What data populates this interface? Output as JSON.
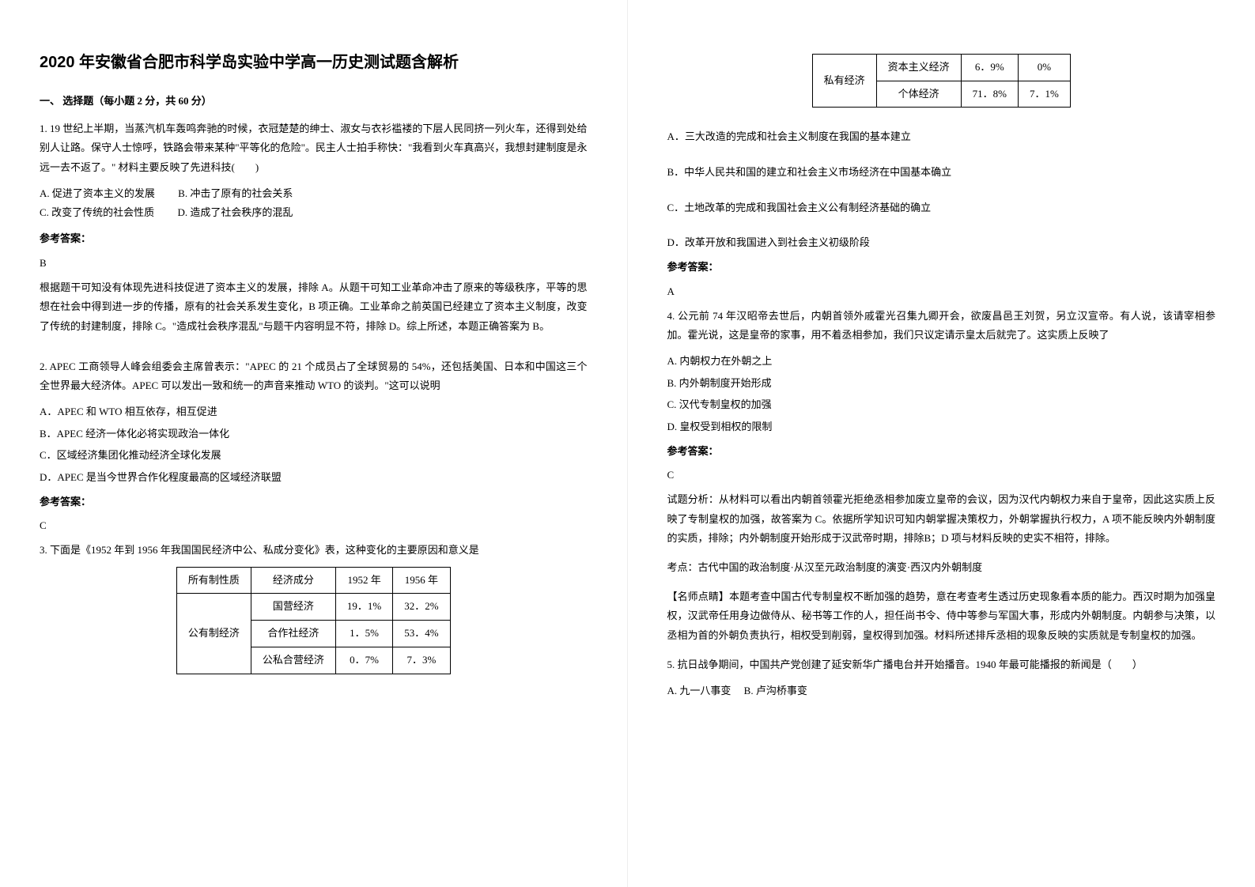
{
  "title": "2020 年安徽省合肥市科学岛实验中学高一历史测试题含解析",
  "section1_heading": "一、 选择题（每小题 2 分，共 60 分）",
  "q1": {
    "stem": "1. 19 世纪上半期，当蒸汽机车轰鸣奔驰的时候，衣冠楚楚的绅士、淑女与衣衫褴褛的下层人民同挤一列火车，还得到处给别人让路。保守人士惊呼，铁路会带来某种\"平等化的危险\"。民主人士拍手称快：\"我看到火车真高兴，我想封建制度是永远一去不返了。\" 材料主要反映了先进科技(　　)",
    "optA": "A. 促进了资本主义的发展",
    "optB": "B. 冲击了原有的社会关系",
    "optC": "C. 改变了传统的社会性质",
    "optD": "D. 造成了社会秩序的混乱",
    "answer": "B",
    "analysis": "根据题干可知没有体现先进科技促进了资本主义的发展，排除 A。从题干可知工业革命冲击了原来的等级秩序，平等的思想在社会中得到进一步的传播，原有的社会关系发生变化，B 项正确。工业革命之前英国已经建立了资本主义制度，改变了传统的封建制度，排除 C。\"造成社会秩序混乱\"与题干内容明显不符，排除 D。综上所述，本题正确答案为 B。"
  },
  "q2": {
    "stem": "2. APEC 工商领导人峰会组委会主席曾表示：\"APEC 的 21 个成员占了全球贸易的 54%，还包括美国、日本和中国这三个全世界最大经济体。APEC 可以发出一致和统一的声音来推动 WTO 的谈判。\"这可以说明",
    "optA": "A．APEC 和 WTO 相互依存，相互促进",
    "optB": "B．APEC 经济一体化必将实现政治一体化",
    "optC": "C．区域经济集团化推动经济全球化发展",
    "optD": "D．APEC 是当今世界合作化程度最高的区域经济联盟",
    "answer": "C"
  },
  "q3": {
    "stem": "3. 下面是《1952 年到 1956 年我国国民经济中公、私成分变化》表，这种变化的主要原因和意义是",
    "table1": {
      "headers": [
        "所有制性质",
        "经济成分",
        "1952 年",
        "1956 年"
      ],
      "rows": [
        [
          "公有制经济",
          "国营经济",
          "19．1%",
          "32．2%"
        ],
        [
          "",
          "合作社经济",
          "1．5%",
          "53．4%"
        ],
        [
          "",
          "公私合营经济",
          "0．7%",
          "7．3%"
        ]
      ]
    },
    "table2": {
      "rows": [
        [
          "私有经济",
          "资本主义经济",
          "6．9%",
          "0%"
        ],
        [
          "",
          "个体经济",
          "71．8%",
          "7．1%"
        ]
      ]
    },
    "optA": "A．三大改造的完成和社会主义制度在我国的基本建立",
    "optB": "B．中华人民共和国的建立和社会主义市场经济在中国基本确立",
    "optC": "C．土地改革的完成和我国社会主义公有制经济基础的确立",
    "optD": "D．改革开放和我国进入到社会主义初级阶段",
    "answer": "A"
  },
  "q4": {
    "stem": "4. 公元前 74 年汉昭帝去世后，内朝首领外戚霍光召集九卿开会，欲废昌邑王刘贺，另立汉宣帝。有人说，该请宰相参加。霍光说，这是皇帝的家事，用不着丞相参加，我们只议定请示皇太后就完了。这实质上反映了",
    "optA": "A. 内朝权力在外朝之上",
    "optB": "B. 内外朝制度开始形成",
    "optC": "C. 汉代专制皇权的加强",
    "optD": "D. 皇权受到相权的限制",
    "answer": "C",
    "analysis": "试题分析：从材料可以看出内朝首领霍光拒绝丞相参加废立皇帝的会议，因为汉代内朝权力来自于皇帝，因此这实质上反映了专制皇权的加强，故答案为 C。依据所学知识可知内朝掌握决策权力，外朝掌握执行权力，A 项不能反映内外朝制度的实质，排除；内外朝制度开始形成于汉武帝时期，排除B；D 项与材料反映的史实不相符，排除。",
    "kaodian": "考点：古代中国的政治制度·从汉至元政治制度的演变·西汉内外朝制度",
    "dianjing": "【名师点睛】本题考查中国古代专制皇权不断加强的趋势，意在考查考生透过历史现象看本质的能力。西汉时期为加强皇权，汉武帝任用身边做侍从、秘书等工作的人，担任尚书令、侍中等参与军国大事，形成内外朝制度。内朝参与决策，以丞相为首的外朝负责执行，相权受到削弱，皇权得到加强。材料所述排斥丞相的现象反映的实质就是专制皇权的加强。"
  },
  "q5": {
    "stem": "5. 抗日战争期间，中国共产党创建了延安新华广播电台并开始播音。1940 年最可能播报的新闻是（　　）",
    "optA": "A. 九一八事变",
    "optB": "B. 卢沟桥事变"
  },
  "answer_label": "参考答案："
}
